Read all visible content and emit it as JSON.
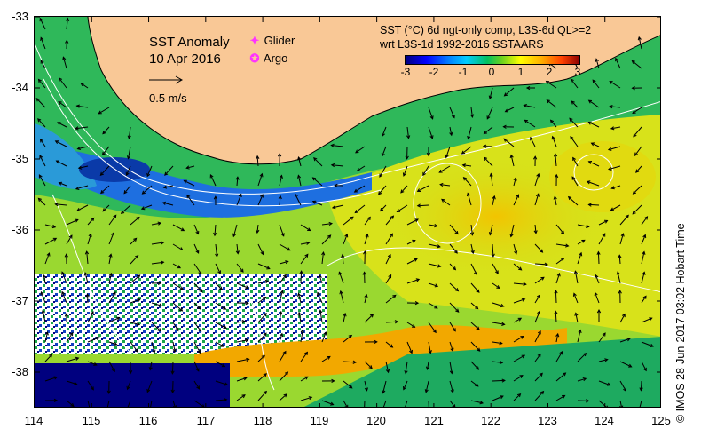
{
  "map": {
    "title_line1": "SST Anomaly",
    "title_line2": "10 Apr 2016",
    "legend_glider": "Glider",
    "legend_argo": "Argo",
    "scale_label": "0.5 m/s",
    "colorbar_title_line1": "SST (°C) 6d ngt-only comp, L3S-6d QL>=2",
    "colorbar_title_line2": "wrt L3S-1d 1992-2016 SSTAARS",
    "colorbar_ticks": [
      "-3",
      "-2",
      "-1",
      "0",
      "1",
      "2",
      "3"
    ],
    "credit": "© IMOS 28-Jun-2017 03:02 Hobart Time",
    "x_ticks": [
      "114",
      "115",
      "116",
      "117",
      "118",
      "119",
      "120",
      "121",
      "122",
      "123",
      "124",
      "125"
    ],
    "y_ticks": [
      "-33",
      "-34",
      "-35",
      "-36",
      "-37",
      "-38"
    ],
    "colors": {
      "land": "#f9c896",
      "deep_blue": "#00007f",
      "blue": "#1e6fe0",
      "green": "#22b14c",
      "light_green": "#7fd43a",
      "yellow": "#e8e820",
      "orange": "#f5a800",
      "marker": "#ff33ff"
    }
  }
}
